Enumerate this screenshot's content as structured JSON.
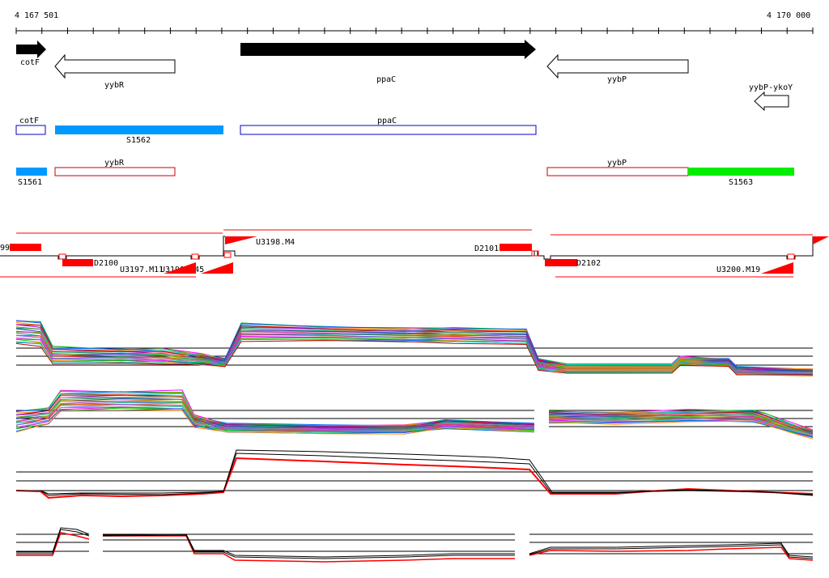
{
  "ruler": {
    "start_label": "4 167 501",
    "end_label": "4 170 000",
    "start_bp": 4167501,
    "end_bp": 4170000
  },
  "genes": {
    "cotF": "cotF",
    "yybR": "yybR",
    "ppaC": "ppaC",
    "yybP": "yybP",
    "yybP_ykoY": "yybP-ykoY"
  },
  "segments": {
    "cotF": "cotF",
    "S1562": "S1562",
    "ppaC": "ppaC",
    "yybR": "yybR",
    "S1561": "S1561",
    "yybP": "yybP",
    "S1563": "S1563"
  },
  "probes": {
    "p99": "99",
    "D2100": "D2100",
    "U3197": "U3197.M11",
    "U3199": "U3199.M45",
    "U3198": "U3198.M4",
    "D2101": "D2101",
    "D2102": "D2102",
    "U3200": "U3200.M19"
  },
  "colors": {
    "arrow_fill": "#000000",
    "segment_blue": "#0099ff",
    "segment_green": "#00ee00",
    "outline_blue": "#0000cc",
    "outline_red": "#cc0000",
    "probe_red": "#ff0000"
  }
}
